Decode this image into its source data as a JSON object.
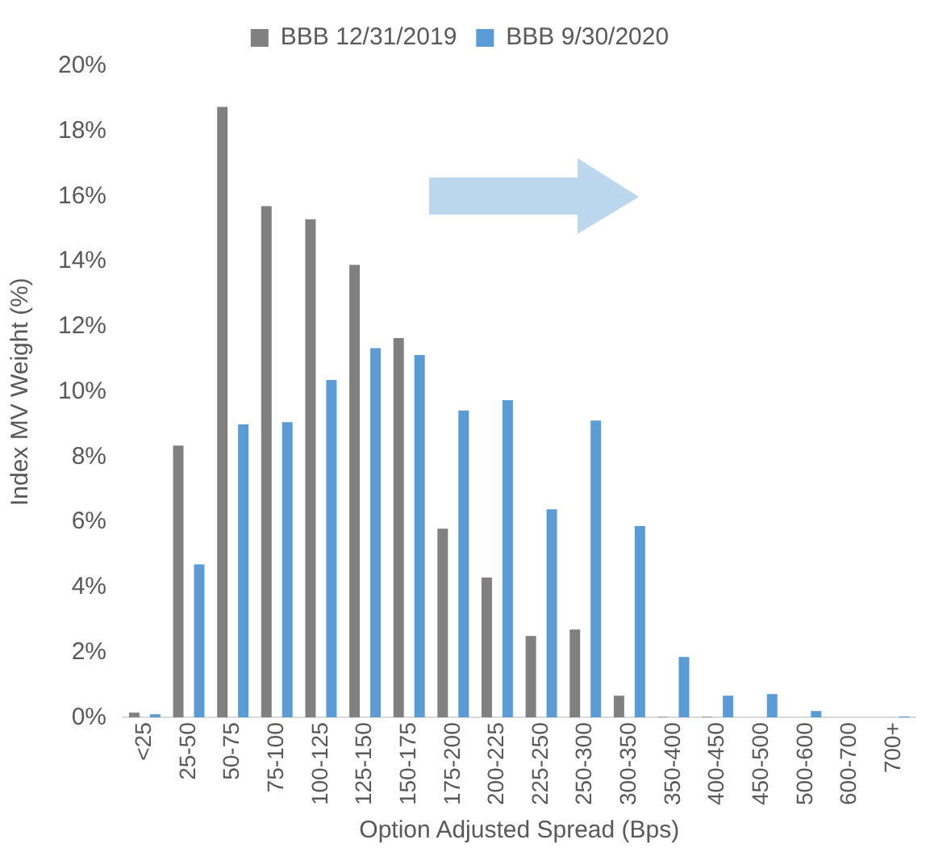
{
  "chart_data": {
    "type": "bar",
    "xlabel": "Option Adjusted Spread (Bps)",
    "ylabel": "Index MV Weight (%)",
    "categories": [
      "<25",
      "25-50",
      "50-75",
      "75-100",
      "100-125",
      "125-150",
      "150-175",
      "175-200",
      "200-225",
      "225-250",
      "250-300",
      "300-350",
      "350-400",
      "400-450",
      "450-500",
      "500-600",
      "600-700",
      "700+"
    ],
    "series": [
      {
        "name": "BBB 12/31/2019",
        "color": "#808080",
        "values": [
          0.15,
          8.35,
          18.75,
          15.7,
          15.3,
          13.9,
          11.65,
          5.8,
          4.3,
          2.5,
          2.7,
          0.67,
          0.02,
          0.02,
          0,
          0,
          0,
          0
        ]
      },
      {
        "name": "BBB 9/30/2020",
        "color": "#5b9bd5",
        "values": [
          0.1,
          4.7,
          9.0,
          9.07,
          10.36,
          11.34,
          11.13,
          9.43,
          9.74,
          6.39,
          9.12,
          5.88,
          1.86,
          0.67,
          0.72,
          0.2,
          0,
          0.03
        ]
      }
    ],
    "ylim": [
      0,
      20
    ],
    "yticks": [
      {
        "value": 0,
        "label": "0%"
      },
      {
        "value": 2,
        "label": "2%"
      },
      {
        "value": 4,
        "label": "4%"
      },
      {
        "value": 6,
        "label": "6%"
      },
      {
        "value": 8,
        "label": "8%"
      },
      {
        "value": 10,
        "label": "10%"
      },
      {
        "value": 12,
        "label": "12%"
      },
      {
        "value": 14,
        "label": "14%"
      },
      {
        "value": 16,
        "label": "16%"
      },
      {
        "value": 18,
        "label": "18%"
      },
      {
        "value": 20,
        "label": "20%"
      }
    ],
    "grid": false,
    "legend": "top"
  }
}
